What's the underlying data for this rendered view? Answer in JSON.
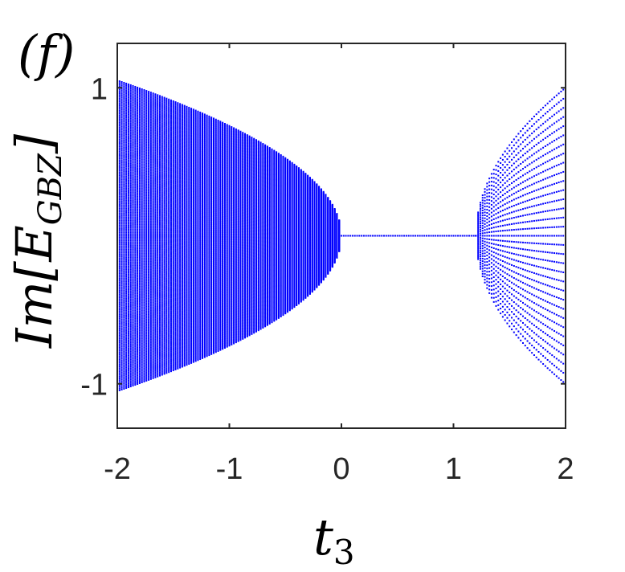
{
  "chart_data": {
    "type": "scatter",
    "panel_label": "(f)",
    "xlabel_base": "t",
    "xlabel_sub": "3",
    "ylabel_prefix": "Im[",
    "ylabel_base": "E",
    "ylabel_sub": "GBZ",
    "ylabel_suffix": "]",
    "xlim": [
      -2,
      2
    ],
    "ylim": [
      -1.3,
      1.3
    ],
    "xticks": [
      -2,
      -1,
      0,
      1,
      2
    ],
    "xtick_labels": [
      "-2",
      "-1",
      "0",
      "1",
      "2"
    ],
    "yticks": [
      -1,
      1
    ],
    "ytick_labels": [
      "-1",
      "1"
    ],
    "grid": false,
    "marker_color": "#0000ff",
    "series": [
      {
        "region": "left-band",
        "x_range": [
          -2,
          0
        ],
        "x_step": 0.02,
        "num_bands": 90,
        "edge_y_at_x_min": 1.05,
        "closing_x": 0,
        "envelope_samples": [
          {
            "x": -2.0,
            "y": 1.05
          },
          {
            "x": -1.5,
            "y": 0.92
          },
          {
            "x": -1.0,
            "y": 0.75
          },
          {
            "x": -0.5,
            "y": 0.53
          },
          {
            "x": -0.2,
            "y": 0.34
          },
          {
            "x": 0.0,
            "y": 0.0
          }
        ]
      },
      {
        "region": "center-line",
        "x_range": [
          -2,
          2
        ],
        "x_step": 0.02,
        "y": 0
      },
      {
        "region": "right-band",
        "x_range": [
          1.2,
          2
        ],
        "x_step": 0.02,
        "num_bands": 16,
        "edge_y_at_x_max": 1.0,
        "opening_x": 1.2,
        "envelope_samples": [
          {
            "x": 1.2,
            "y": 0.0
          },
          {
            "x": 1.5,
            "y": 0.63
          },
          {
            "x": 1.8,
            "y": 0.89
          },
          {
            "x": 2.0,
            "y": 1.0
          }
        ]
      }
    ]
  }
}
